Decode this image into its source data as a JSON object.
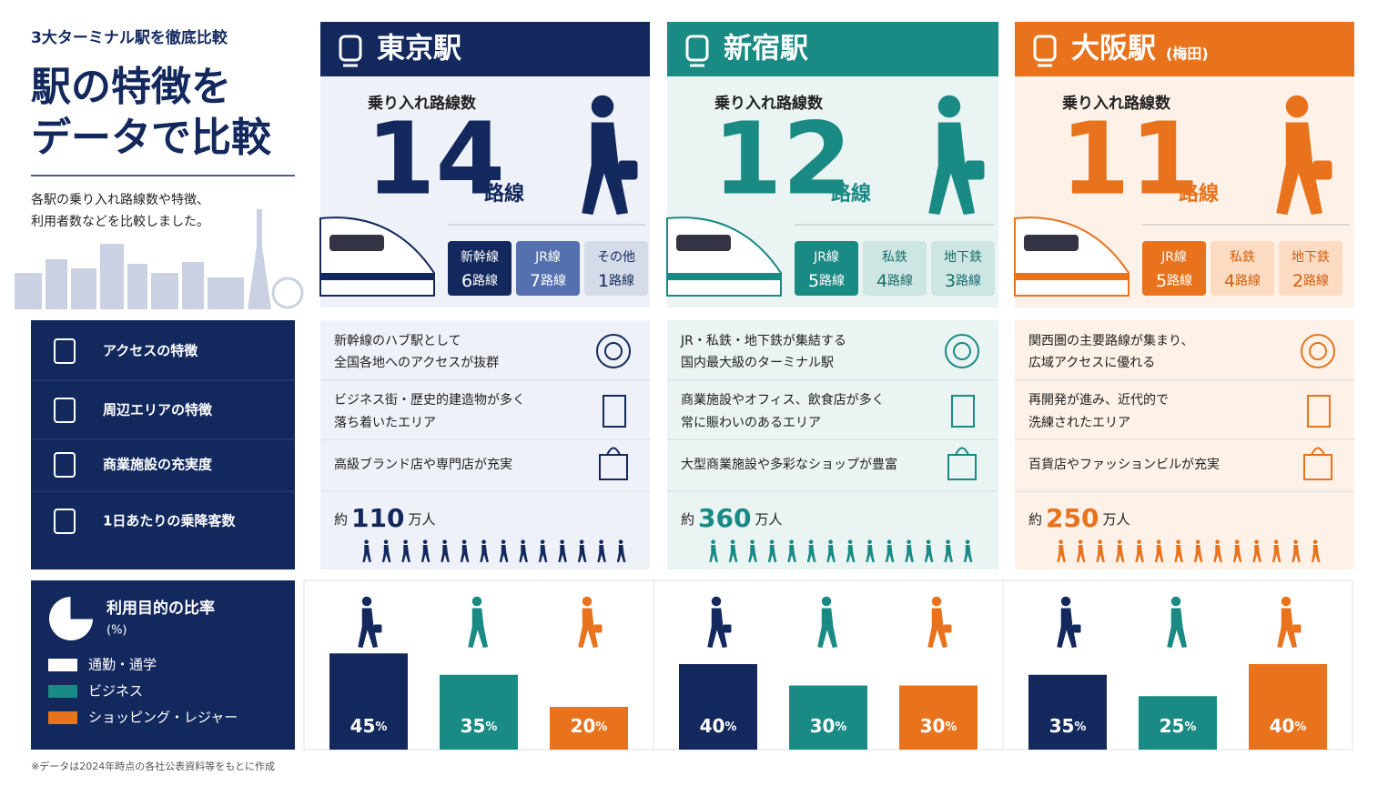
{
  "header": {
    "kicker": "3大ターミナル駅を徹底比較",
    "title": [
      "駅の特徴を",
      "データで比較"
    ],
    "description": [
      "各駅の乗り入れ路線数や特徴、",
      "利用者数などを比較しました。"
    ]
  },
  "feature_labels": [
    "アクセスの特徴",
    "周辺エリアの特徴",
    "商業施設の充実度",
    "1日あたりの乗降客数"
  ],
  "stations": [
    {
      "name": "東京駅",
      "color": "#13295e",
      "tint": "#eef1f7",
      "lines_label": "乗り入れ路線数",
      "lines_count": 14,
      "lines_unit": "路線",
      "breakdown": [
        {
          "label": "新幹線",
          "count": 6,
          "unit": "路線",
          "bg": "#13295e",
          "fg": "#ffffff"
        },
        {
          "label": "JR線",
          "count": 7,
          "unit": "路線",
          "bg": "#5470ae",
          "fg": "#ffffff"
        },
        {
          "label": "その他",
          "count": 1,
          "unit": "路線",
          "bg": "#d5dbe8",
          "fg": "#13295e"
        }
      ],
      "access": [
        "新幹線のハブ駅として",
        "全国各地へのアクセスが抜群"
      ],
      "area": [
        "ビジネス街・歴史的建造物が多く",
        "落ち着いたエリア"
      ],
      "commercial": "高級ブランド店や専門店が充実",
      "riders": {
        "prefix": "約",
        "value": 110,
        "unit": "万人"
      },
      "purpose": [
        45,
        35,
        20
      ]
    },
    {
      "name": "新宿駅",
      "color": "#1a8a84",
      "tint": "#e9f4f3",
      "lines_label": "乗り入れ路線数",
      "lines_count": 12,
      "lines_unit": "路線",
      "breakdown": [
        {
          "label": "JR線",
          "count": 5,
          "unit": "路線",
          "bg": "#1a8a84",
          "fg": "#ffffff"
        },
        {
          "label": "私鉄",
          "count": 4,
          "unit": "路線",
          "bg": "#cde6e3",
          "fg": "#1a6e69"
        },
        {
          "label": "地下鉄",
          "count": 3,
          "unit": "路線",
          "bg": "#cde6e3",
          "fg": "#1a6e69"
        }
      ],
      "access": [
        "JR・私鉄・地下鉄が集結する",
        "国内最大級のターミナル駅"
      ],
      "area": [
        "商業施設やオフィス、飲食店が多く",
        "常に賑わいのあるエリア"
      ],
      "commercial": "大型商業施設や多彩なショップが豊富",
      "riders": {
        "prefix": "約",
        "value": 360,
        "unit": "万人"
      },
      "purpose": [
        40,
        30,
        30
      ]
    },
    {
      "name": "大阪駅",
      "note": "(梅田)",
      "color": "#e8731c",
      "tint": "#fdf1e8",
      "lines_label": "乗り入れ路線数",
      "lines_count": 11,
      "lines_unit": "路線",
      "breakdown": [
        {
          "label": "JR線",
          "count": 5,
          "unit": "路線",
          "bg": "#e8731c",
          "fg": "#ffffff"
        },
        {
          "label": "私鉄",
          "count": 4,
          "unit": "路線",
          "bg": "#fbdcc3",
          "fg": "#d0600f"
        },
        {
          "label": "地下鉄",
          "count": 2,
          "unit": "路線",
          "bg": "#fbdcc3",
          "fg": "#d0600f"
        }
      ],
      "access": [
        "関西圏の主要路線が集まり、",
        "広域アクセスに優れる"
      ],
      "area": [
        "再開発が進み、近代的で",
        "洗練されたエリア"
      ],
      "commercial": "百貨店やファッションビルが充実",
      "riders": {
        "prefix": "約",
        "value": 250,
        "unit": "万人"
      },
      "purpose": [
        35,
        25,
        40
      ]
    }
  ],
  "purpose": {
    "title": "利用目的の比率",
    "unit": "(%)",
    "percent": "%",
    "categories": [
      {
        "name": "通勤・通学",
        "color": "#13295e",
        "legend_color": "#ffffff"
      },
      {
        "name": "ビジネス",
        "color": "#1a8a84",
        "legend_color": "#1a8a84"
      },
      {
        "name": "ショッピング・レジャー",
        "color": "#e8731c",
        "legend_color": "#e8731c"
      }
    ]
  },
  "footnote": "※データは2024年時点の各社公表資料等をもとに作成"
}
